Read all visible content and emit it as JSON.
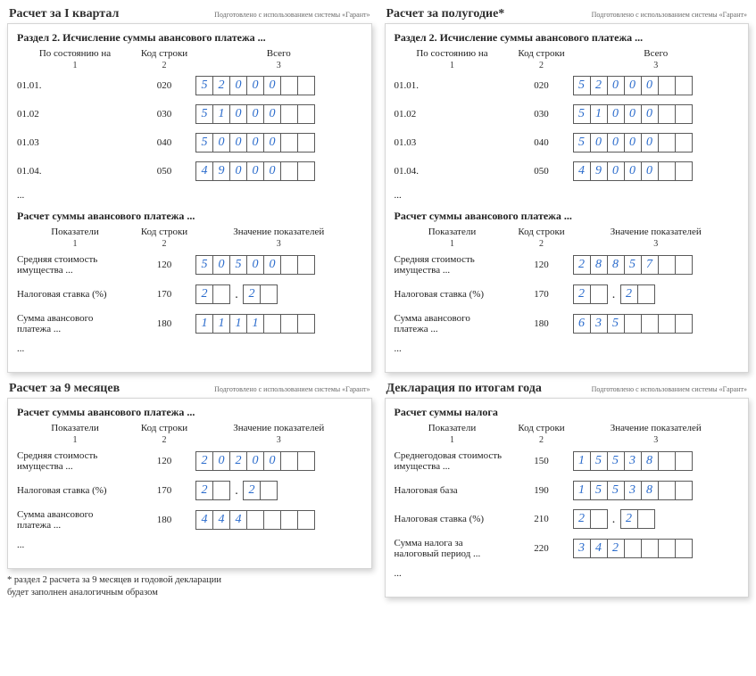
{
  "common": {
    "subtitle": "Подготовлено с использованием системы «Гарант»",
    "section2_title": "Раздел 2. Исчисление суммы авансового платежа ...",
    "avans_title": "Расчет суммы авансового платежа ...",
    "col_h1_a": "По состоянию на",
    "col_h2_a": "Код строки",
    "col_h3_a": "Всего",
    "col_h1_b": "Показатели",
    "col_h2_b": "Код строки",
    "col_h3_b": "Значение показателей",
    "sub1": "1",
    "sub2": "2",
    "sub3": "3",
    "ellipsis": "...",
    "row_sred": "Средняя стоимость имущества ...",
    "row_stavka": "Налоговая ставка (%)",
    "row_summa": "Сумма авансового платежа ..."
  },
  "panels": {
    "q1": {
      "title": "Расчет за I квартал",
      "sec2": [
        {
          "label": "01.01.",
          "code": "020",
          "cells": [
            "5",
            "2",
            "0",
            "0",
            "0",
            "",
            ""
          ]
        },
        {
          "label": "01.02",
          "code": "030",
          "cells": [
            "5",
            "1",
            "0",
            "0",
            "0",
            "",
            ""
          ]
        },
        {
          "label": "01.03",
          "code": "040",
          "cells": [
            "5",
            "0",
            "0",
            "0",
            "0",
            "",
            ""
          ]
        },
        {
          "label": "01.04.",
          "code": "050",
          "cells": [
            "4",
            "9",
            "0",
            "0",
            "0",
            "",
            ""
          ]
        }
      ],
      "avans": {
        "sred": {
          "code": "120",
          "cells": [
            "5",
            "0",
            "5",
            "0",
            "0",
            "",
            ""
          ]
        },
        "stavka": {
          "code": "170",
          "a": [
            "2",
            ""
          ],
          "b": [
            "2",
            ""
          ]
        },
        "summa": {
          "code": "180",
          "cells": [
            "1",
            "1",
            "1",
            "1",
            "",
            "",
            ""
          ]
        }
      }
    },
    "half": {
      "title": "Расчет за полугодие*",
      "sec2": [
        {
          "label": "01.01.",
          "code": "020",
          "cells": [
            "5",
            "2",
            "0",
            "0",
            "0",
            "",
            ""
          ]
        },
        {
          "label": "01.02",
          "code": "030",
          "cells": [
            "5",
            "1",
            "0",
            "0",
            "0",
            "",
            ""
          ]
        },
        {
          "label": "01.03",
          "code": "040",
          "cells": [
            "5",
            "0",
            "0",
            "0",
            "0",
            "",
            ""
          ]
        },
        {
          "label": "01.04.",
          "code": "050",
          "cells": [
            "4",
            "9",
            "0",
            "0",
            "0",
            "",
            ""
          ]
        }
      ],
      "avans": {
        "sred": {
          "code": "120",
          "cells": [
            "2",
            "8",
            "8",
            "5",
            "7",
            "",
            ""
          ]
        },
        "stavka": {
          "code": "170",
          "a": [
            "2",
            ""
          ],
          "b": [
            "2",
            ""
          ]
        },
        "summa": {
          "code": "180",
          "cells": [
            "6",
            "3",
            "5",
            "",
            "",
            "",
            ""
          ]
        }
      }
    },
    "nine": {
      "title": "Расчет за 9 месяцев",
      "avans": {
        "sred": {
          "code": "120",
          "cells": [
            "2",
            "0",
            "2",
            "0",
            "0",
            "",
            ""
          ]
        },
        "stavka": {
          "code": "170",
          "a": [
            "2",
            ""
          ],
          "b": [
            "2",
            ""
          ]
        },
        "summa": {
          "code": "180",
          "cells": [
            "4",
            "4",
            "4",
            "",
            "",
            "",
            ""
          ]
        }
      }
    },
    "year": {
      "title": "Декларация по итогам года",
      "nalog_title": "Расчет суммы налога",
      "rows": [
        {
          "label": "Среднегодовая стоимость имущества ...",
          "code": "150",
          "cells": [
            "1",
            "5",
            "5",
            "3",
            "8",
            "",
            ""
          ]
        },
        {
          "label": "Налоговая база",
          "code": "190",
          "cells": [
            "1",
            "5",
            "5",
            "3",
            "8",
            "",
            ""
          ]
        },
        {
          "label": "Налоговая ставка (%)",
          "code": "210",
          "type": "rate",
          "a": [
            "2",
            ""
          ],
          "b": [
            "2",
            ""
          ]
        },
        {
          "label": "Сумма налога за налоговый период ...",
          "code": "220",
          "cells": [
            "3",
            "4",
            "2",
            "",
            "",
            "",
            ""
          ]
        }
      ]
    }
  },
  "footnote": "* раздел 2 расчета за 9 месяцев и годовой декларации\n   будет заполнен аналогичным образом"
}
